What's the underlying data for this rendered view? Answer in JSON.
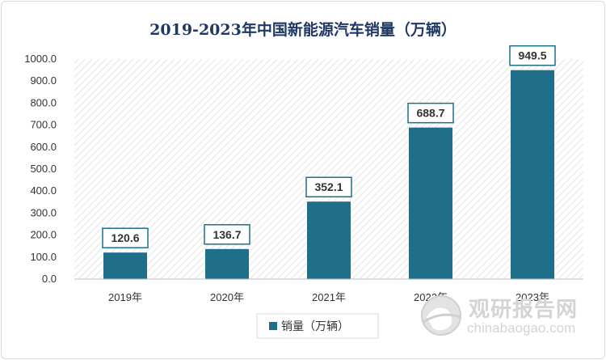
{
  "chart_data": {
    "type": "bar",
    "title": "2019-2023年中国新能源汽车销量（万辆）",
    "categories": [
      "2019年",
      "2020年",
      "2021年",
      "2022年",
      "2023年"
    ],
    "series": [
      {
        "name": "销量（万辆）",
        "values": [
          120.6,
          136.7,
          352.1,
          688.7,
          949.5
        ],
        "color": "#1f6f8b"
      }
    ],
    "data_labels": [
      "120.6",
      "136.7",
      "352.1",
      "688.7",
      "949.5"
    ],
    "yticks": [
      "0.0",
      "100.0",
      "200.0",
      "300.0",
      "400.0",
      "500.0",
      "600.0",
      "700.0",
      "800.0",
      "900.0",
      "1000.0"
    ],
    "ylim": [
      0,
      1000
    ],
    "grid": false,
    "legend": "bottom-center",
    "plot_background": "diagonal-hatch"
  },
  "watermark": {
    "text_cn": "观研报告网",
    "url": "chinabaogao.com",
    "icon": "globe-logo-icon"
  },
  "colors": {
    "bar": "#1f6f8b",
    "title": "#1f3864",
    "label_border": "#1f6f8b",
    "watermark": "#d4d4d4"
  }
}
